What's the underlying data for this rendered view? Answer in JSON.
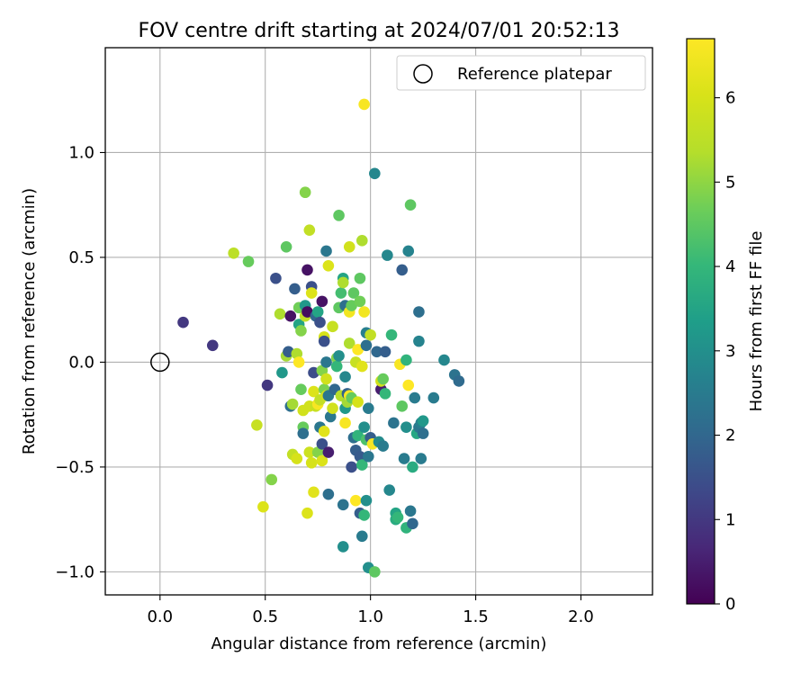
{
  "chart_data": {
    "type": "scatter",
    "title": "FOV centre drift starting at 2024/07/01 20:52:13",
    "xlabel": "Angular distance from reference (arcmin)",
    "ylabel": "Rotation from reference (arcmin)",
    "xlim": [
      -0.26,
      2.34
    ],
    "ylim": [
      -1.11,
      1.5
    ],
    "x_ticks": [
      0.0,
      0.5,
      1.0,
      1.5,
      2.0
    ],
    "x_tick_labels": [
      "0.0",
      "0.5",
      "1.0",
      "1.5",
      "2.0"
    ],
    "y_ticks": [
      -1.0,
      -0.5,
      0.0,
      0.5,
      1.0
    ],
    "y_tick_labels": [
      "−1.0",
      "−0.5",
      "0.0",
      "0.5",
      "1.0"
    ],
    "grid": true,
    "legend": {
      "placement": "top-right",
      "entries": [
        "Reference platepar"
      ]
    },
    "reference_point": {
      "x": 0.0,
      "y": 0.0
    },
    "colorbar": {
      "label": "Hours from first FF file",
      "colormap": "viridis",
      "range": [
        0,
        6.7
      ],
      "ticks": [
        0,
        1,
        2,
        3,
        4,
        5,
        6
      ],
      "tick_labels": [
        "0",
        "1",
        "2",
        "3",
        "4",
        "5",
        "6"
      ]
    },
    "points": [
      {
        "x": 0.11,
        "y": 0.19,
        "c": 1.0
      },
      {
        "x": 0.25,
        "y": 0.08,
        "c": 1.0
      },
      {
        "x": 0.35,
        "y": 0.52,
        "c": 5.5
      },
      {
        "x": 0.42,
        "y": 0.48,
        "c": 4.6
      },
      {
        "x": 0.46,
        "y": -0.3,
        "c": 5.7
      },
      {
        "x": 0.49,
        "y": -0.69,
        "c": 6.1
      },
      {
        "x": 0.51,
        "y": -0.11,
        "c": 1.0
      },
      {
        "x": 0.53,
        "y": -0.56,
        "c": 4.9
      },
      {
        "x": 0.55,
        "y": 0.4,
        "c": 1.5
      },
      {
        "x": 0.57,
        "y": 0.23,
        "c": 5.3
      },
      {
        "x": 0.58,
        "y": -0.05,
        "c": 3.2
      },
      {
        "x": 0.6,
        "y": 0.03,
        "c": 5.2
      },
      {
        "x": 0.6,
        "y": 0.55,
        "c": 4.5
      },
      {
        "x": 0.61,
        "y": 0.05,
        "c": 1.8
      },
      {
        "x": 0.62,
        "y": 0.22,
        "c": 0.3
      },
      {
        "x": 0.62,
        "y": -0.21,
        "c": 2.2
      },
      {
        "x": 0.63,
        "y": -0.2,
        "c": 5.2
      },
      {
        "x": 0.63,
        "y": -0.44,
        "c": 5.6
      },
      {
        "x": 0.64,
        "y": 0.35,
        "c": 1.8
      },
      {
        "x": 0.65,
        "y": 0.04,
        "c": 5.3
      },
      {
        "x": 0.65,
        "y": -0.46,
        "c": 6.0
      },
      {
        "x": 0.66,
        "y": 0.26,
        "c": 4.7
      },
      {
        "x": 0.66,
        "y": 0.18,
        "c": 3.5
      },
      {
        "x": 0.66,
        "y": 0.0,
        "c": 6.7
      },
      {
        "x": 0.67,
        "y": -0.13,
        "c": 4.6
      },
      {
        "x": 0.67,
        "y": 0.15,
        "c": 4.9
      },
      {
        "x": 0.68,
        "y": -0.23,
        "c": 5.9
      },
      {
        "x": 0.68,
        "y": -0.31,
        "c": 4.6
      },
      {
        "x": 0.68,
        "y": -0.34,
        "c": 2.2
      },
      {
        "x": 0.69,
        "y": 0.81,
        "c": 4.9
      },
      {
        "x": 0.69,
        "y": 0.27,
        "c": 3.2
      },
      {
        "x": 0.69,
        "y": 0.22,
        "c": 5.6
      },
      {
        "x": 0.7,
        "y": 0.24,
        "c": 0.2
      },
      {
        "x": 0.7,
        "y": -0.72,
        "c": 6.1
      },
      {
        "x": 0.7,
        "y": 0.44,
        "c": 0.3
      },
      {
        "x": 0.71,
        "y": 0.63,
        "c": 5.6
      },
      {
        "x": 0.71,
        "y": -0.21,
        "c": 5.9
      },
      {
        "x": 0.71,
        "y": -0.43,
        "c": 5.8
      },
      {
        "x": 0.72,
        "y": 0.36,
        "c": 1.5
      },
      {
        "x": 0.72,
        "y": 0.33,
        "c": 6.1
      },
      {
        "x": 0.72,
        "y": -0.48,
        "c": 6.0
      },
      {
        "x": 0.73,
        "y": -0.62,
        "c": 6.2
      },
      {
        "x": 0.73,
        "y": -0.14,
        "c": 6.1
      },
      {
        "x": 0.73,
        "y": -0.05,
        "c": 1.4
      },
      {
        "x": 0.74,
        "y": 0.22,
        "c": 2.0
      },
      {
        "x": 0.74,
        "y": -0.21,
        "c": 5.7
      },
      {
        "x": 0.75,
        "y": 0.24,
        "c": 3.5
      },
      {
        "x": 0.75,
        "y": -0.43,
        "c": 4.9
      },
      {
        "x": 0.75,
        "y": -0.2,
        "c": 6.6
      },
      {
        "x": 0.76,
        "y": -0.31,
        "c": 2.4
      },
      {
        "x": 0.76,
        "y": -0.18,
        "c": 5.6
      },
      {
        "x": 0.76,
        "y": 0.19,
        "c": 1.5
      },
      {
        "x": 0.77,
        "y": -0.04,
        "c": 4.9
      },
      {
        "x": 0.77,
        "y": 0.29,
        "c": 0.3
      },
      {
        "x": 0.77,
        "y": -0.47,
        "c": 6.1
      },
      {
        "x": 0.77,
        "y": -0.39,
        "c": 1.5
      },
      {
        "x": 0.78,
        "y": 0.12,
        "c": 6.0
      },
      {
        "x": 0.78,
        "y": 0.1,
        "c": 1.5
      },
      {
        "x": 0.78,
        "y": -0.13,
        "c": 4.8
      },
      {
        "x": 0.78,
        "y": -0.33,
        "c": 6.2
      },
      {
        "x": 0.79,
        "y": 0.0,
        "c": 2.4
      },
      {
        "x": 0.79,
        "y": -0.08,
        "c": 5.9
      },
      {
        "x": 0.79,
        "y": 0.53,
        "c": 2.4
      },
      {
        "x": 0.79,
        "y": -0.16,
        "c": 5.9
      },
      {
        "x": 0.8,
        "y": -0.43,
        "c": 0.5
      },
      {
        "x": 0.8,
        "y": 0.46,
        "c": 6.1
      },
      {
        "x": 0.8,
        "y": -0.63,
        "c": 2.2
      },
      {
        "x": 0.8,
        "y": -0.16,
        "c": 2.4
      },
      {
        "x": 0.81,
        "y": -0.26,
        "c": 2.4
      },
      {
        "x": 0.82,
        "y": 0.17,
        "c": 5.7
      },
      {
        "x": 0.82,
        "y": -0.22,
        "c": 5.9
      },
      {
        "x": 0.83,
        "y": -0.13,
        "c": 2.0
      },
      {
        "x": 0.84,
        "y": 0.02,
        "c": 4.9
      },
      {
        "x": 0.84,
        "y": -0.02,
        "c": 4.0
      },
      {
        "x": 0.85,
        "y": 0.7,
        "c": 4.5
      },
      {
        "x": 0.85,
        "y": 0.03,
        "c": 3.0
      },
      {
        "x": 0.85,
        "y": 0.26,
        "c": 4.5
      },
      {
        "x": 0.86,
        "y": 0.33,
        "c": 4.2
      },
      {
        "x": 0.86,
        "y": -0.16,
        "c": 5.4
      },
      {
        "x": 0.87,
        "y": 0.4,
        "c": 3.5
      },
      {
        "x": 0.87,
        "y": 0.38,
        "c": 5.3
      },
      {
        "x": 0.87,
        "y": -0.68,
        "c": 2.3
      },
      {
        "x": 0.87,
        "y": -0.88,
        "c": 3.0
      },
      {
        "x": 0.88,
        "y": -0.07,
        "c": 2.8
      },
      {
        "x": 0.88,
        "y": 0.27,
        "c": 2.2
      },
      {
        "x": 0.88,
        "y": -0.29,
        "c": 6.6
      },
      {
        "x": 0.88,
        "y": -0.22,
        "c": 3.2
      },
      {
        "x": 0.89,
        "y": -0.19,
        "c": 5.2
      },
      {
        "x": 0.89,
        "y": -0.15,
        "c": 1.9
      },
      {
        "x": 0.9,
        "y": 0.09,
        "c": 5.3
      },
      {
        "x": 0.9,
        "y": 0.55,
        "c": 5.9
      },
      {
        "x": 0.9,
        "y": 0.24,
        "c": 6.5
      },
      {
        "x": 0.9,
        "y": -0.16,
        "c": 6.6
      },
      {
        "x": 0.91,
        "y": -0.5,
        "c": 1.5
      },
      {
        "x": 0.91,
        "y": 0.27,
        "c": 4.6
      },
      {
        "x": 0.91,
        "y": -0.17,
        "c": 4.6
      },
      {
        "x": 0.92,
        "y": 0.33,
        "c": 4.5
      },
      {
        "x": 0.92,
        "y": -0.36,
        "c": 2.2
      },
      {
        "x": 0.93,
        "y": 0.0,
        "c": 5.7
      },
      {
        "x": 0.93,
        "y": -0.42,
        "c": 1.8
      },
      {
        "x": 0.93,
        "y": -0.66,
        "c": 6.7
      },
      {
        "x": 0.94,
        "y": 0.06,
        "c": 6.7
      },
      {
        "x": 0.94,
        "y": -0.19,
        "c": 6.0
      },
      {
        "x": 0.94,
        "y": -0.35,
        "c": 3.9
      },
      {
        "x": 0.95,
        "y": 0.29,
        "c": 4.7
      },
      {
        "x": 0.95,
        "y": -0.45,
        "c": 1.7
      },
      {
        "x": 0.95,
        "y": -0.72,
        "c": 1.8
      },
      {
        "x": 0.95,
        "y": 0.4,
        "c": 4.5
      },
      {
        "x": 0.96,
        "y": -0.49,
        "c": 4.0
      },
      {
        "x": 0.96,
        "y": 0.58,
        "c": 5.3
      },
      {
        "x": 0.96,
        "y": -0.83,
        "c": 2.5
      },
      {
        "x": 0.96,
        "y": -0.02,
        "c": 6.2
      },
      {
        "x": 0.97,
        "y": 1.23,
        "c": 6.6
      },
      {
        "x": 0.97,
        "y": 0.24,
        "c": 6.5
      },
      {
        "x": 0.97,
        "y": -0.73,
        "c": 4.0
      },
      {
        "x": 0.97,
        "y": -0.31,
        "c": 3.0
      },
      {
        "x": 0.98,
        "y": -0.66,
        "c": 3.0
      },
      {
        "x": 0.98,
        "y": 0.14,
        "c": 2.6
      },
      {
        "x": 0.98,
        "y": -0.37,
        "c": 4.3
      },
      {
        "x": 0.98,
        "y": 0.08,
        "c": 2.2
      },
      {
        "x": 0.99,
        "y": -0.98,
        "c": 3.0
      },
      {
        "x": 0.99,
        "y": -0.45,
        "c": 2.4
      },
      {
        "x": 0.99,
        "y": -0.22,
        "c": 2.5
      },
      {
        "x": 1.0,
        "y": 0.13,
        "c": 5.6
      },
      {
        "x": 1.0,
        "y": -0.36,
        "c": 1.8
      },
      {
        "x": 1.01,
        "y": -0.39,
        "c": 6.6
      },
      {
        "x": 1.02,
        "y": -1.0,
        "c": 4.5
      },
      {
        "x": 1.02,
        "y": 0.9,
        "c": 2.8
      },
      {
        "x": 1.03,
        "y": 0.05,
        "c": 2.0
      },
      {
        "x": 1.04,
        "y": -0.38,
        "c": 2.9
      },
      {
        "x": 1.05,
        "y": -0.13,
        "c": 0.5
      },
      {
        "x": 1.05,
        "y": -0.09,
        "c": 5.9
      },
      {
        "x": 1.06,
        "y": -0.08,
        "c": 4.6
      },
      {
        "x": 1.06,
        "y": -0.4,
        "c": 2.5
      },
      {
        "x": 1.07,
        "y": 0.05,
        "c": 1.8
      },
      {
        "x": 1.07,
        "y": -0.15,
        "c": 4.0
      },
      {
        "x": 1.08,
        "y": 0.51,
        "c": 2.8
      },
      {
        "x": 1.09,
        "y": -0.61,
        "c": 2.8
      },
      {
        "x": 1.1,
        "y": 0.13,
        "c": 4.0
      },
      {
        "x": 1.11,
        "y": -0.29,
        "c": 2.3
      },
      {
        "x": 1.12,
        "y": -0.72,
        "c": 3.5
      },
      {
        "x": 1.12,
        "y": -0.75,
        "c": 3.7
      },
      {
        "x": 1.13,
        "y": -0.74,
        "c": 4.0
      },
      {
        "x": 1.14,
        "y": -0.01,
        "c": 6.6
      },
      {
        "x": 1.15,
        "y": -0.21,
        "c": 4.5
      },
      {
        "x": 1.15,
        "y": 0.44,
        "c": 1.8
      },
      {
        "x": 1.16,
        "y": -0.46,
        "c": 2.5
      },
      {
        "x": 1.17,
        "y": -0.79,
        "c": 3.9
      },
      {
        "x": 1.17,
        "y": -0.31,
        "c": 3.0
      },
      {
        "x": 1.17,
        "y": 0.01,
        "c": 3.9
      },
      {
        "x": 1.18,
        "y": 0.53,
        "c": 2.7
      },
      {
        "x": 1.18,
        "y": -0.11,
        "c": 6.7
      },
      {
        "x": 1.19,
        "y": 0.75,
        "c": 4.5
      },
      {
        "x": 1.19,
        "y": -0.71,
        "c": 2.4
      },
      {
        "x": 1.2,
        "y": -0.5,
        "c": 3.7
      },
      {
        "x": 1.2,
        "y": -0.77,
        "c": 2.0
      },
      {
        "x": 1.21,
        "y": -0.17,
        "c": 2.5
      },
      {
        "x": 1.22,
        "y": -0.34,
        "c": 3.6
      },
      {
        "x": 1.23,
        "y": 0.24,
        "c": 2.2
      },
      {
        "x": 1.23,
        "y": 0.1,
        "c": 2.7
      },
      {
        "x": 1.23,
        "y": -0.31,
        "c": 2.4
      },
      {
        "x": 1.24,
        "y": -0.46,
        "c": 2.5
      },
      {
        "x": 1.24,
        "y": -0.29,
        "c": 2.6
      },
      {
        "x": 1.25,
        "y": -0.34,
        "c": 2.2
      },
      {
        "x": 1.25,
        "y": -0.28,
        "c": 3.2
      },
      {
        "x": 1.3,
        "y": -0.17,
        "c": 2.5
      },
      {
        "x": 1.35,
        "y": 0.01,
        "c": 2.8
      },
      {
        "x": 1.4,
        "y": -0.06,
        "c": 2.3
      },
      {
        "x": 1.42,
        "y": -0.09,
        "c": 2.1
      }
    ]
  }
}
